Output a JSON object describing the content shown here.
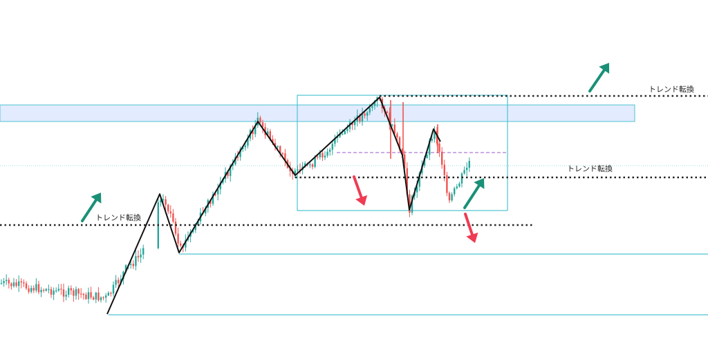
{
  "chart_data": {
    "type": "candlestick",
    "title": "",
    "xlabel": "",
    "ylabel": "",
    "colors": {
      "up": "#26a69a",
      "down": "#ef5350",
      "zigzag": "#111111",
      "levels": "#222222",
      "zones": "#4dc3cf",
      "zone_fill": "#e3ebff",
      "arrow_up": "#1a9077",
      "arrow_down": "#ef3b54",
      "dashed_mid": "#9b59c9"
    },
    "annotations": [
      {
        "id": "trend-label-1",
        "text": "トレンド転換"
      },
      {
        "id": "trend-label-2",
        "text": "トレンド転換"
      },
      {
        "id": "trend-label-3",
        "text": "トレンド転換"
      }
    ],
    "arrows": [
      {
        "id": "arrow-up-left",
        "direction": "up"
      },
      {
        "id": "arrow-up-top",
        "direction": "up"
      },
      {
        "id": "arrow-down-mid",
        "direction": "down"
      },
      {
        "id": "arrow-up-right",
        "direction": "up"
      },
      {
        "id": "arrow-down-right",
        "direction": "down"
      }
    ]
  }
}
